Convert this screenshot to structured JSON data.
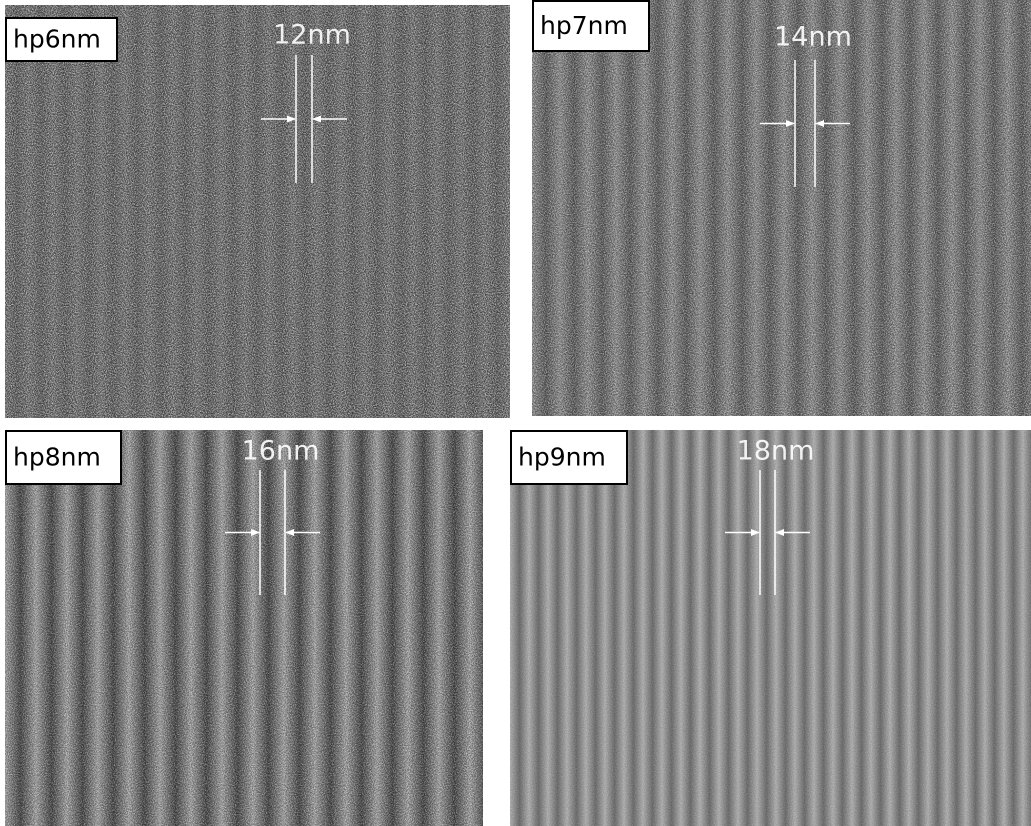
{
  "panels": [
    {
      "label": "hp6nm",
      "measure": "12nm"
    },
    {
      "label": "hp7nm",
      "measure": "14nm"
    },
    {
      "label": "hp8nm",
      "measure": "16nm"
    },
    {
      "label": "hp9nm",
      "measure": "18nm"
    }
  ]
}
